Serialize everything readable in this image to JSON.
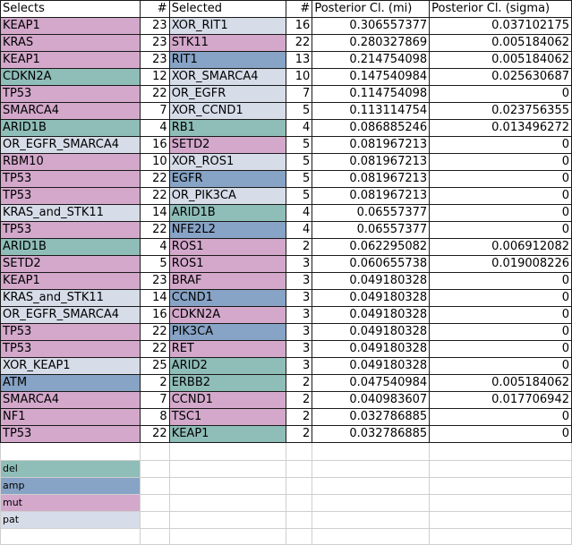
{
  "colors": {
    "del": "#8fbdb8",
    "amp": "#87a3c5",
    "mut": "#d3a8cb",
    "pat": "#d6dce8"
  },
  "headers": [
    "Selects",
    "#",
    "Selected",
    "#",
    "Posterior Cl. (mi)",
    "Posterior Cl. (sigma)"
  ],
  "rows": [
    {
      "selects": "KEAP1",
      "sel_type": "mut",
      "n1": "23",
      "selected": "XOR_RIT1",
      "sld_type": "pat",
      "n2": "16",
      "mi": "0.306557377",
      "sigma": "0.037102175"
    },
    {
      "selects": "KRAS",
      "sel_type": "mut",
      "n1": "23",
      "selected": "STK11",
      "sld_type": "mut",
      "n2": "22",
      "mi": "0.280327869",
      "sigma": "0.005184062"
    },
    {
      "selects": "KEAP1",
      "sel_type": "mut",
      "n1": "23",
      "selected": "RIT1",
      "sld_type": "amp",
      "n2": "13",
      "mi": "0.214754098",
      "sigma": "0.005184062"
    },
    {
      "selects": "CDKN2A",
      "sel_type": "del",
      "n1": "12",
      "selected": "XOR_SMARCA4",
      "sld_type": "pat",
      "n2": "10",
      "mi": "0.147540984",
      "sigma": "0.025630687"
    },
    {
      "selects": "TP53",
      "sel_type": "mut",
      "n1": "22",
      "selected": "OR_EGFR",
      "sld_type": "pat",
      "n2": "7",
      "mi": "0.114754098",
      "sigma": "0"
    },
    {
      "selects": "SMARCA4",
      "sel_type": "mut",
      "n1": "7",
      "selected": "XOR_CCND1",
      "sld_type": "pat",
      "n2": "5",
      "mi": "0.113114754",
      "sigma": "0.023756355"
    },
    {
      "selects": "ARID1B",
      "sel_type": "del",
      "n1": "4",
      "selected": "RB1",
      "sld_type": "del",
      "n2": "4",
      "mi": "0.086885246",
      "sigma": "0.013496272"
    },
    {
      "selects": "OR_EGFR_SMARCA4",
      "sel_type": "pat",
      "n1": "16",
      "selected": "SETD2",
      "sld_type": "mut",
      "n2": "5",
      "mi": "0.081967213",
      "sigma": "0"
    },
    {
      "selects": "RBM10",
      "sel_type": "mut",
      "n1": "10",
      "selected": "XOR_ROS1",
      "sld_type": "pat",
      "n2": "5",
      "mi": "0.081967213",
      "sigma": "0"
    },
    {
      "selects": "TP53",
      "sel_type": "mut",
      "n1": "22",
      "selected": "EGFR",
      "sld_type": "amp",
      "n2": "5",
      "mi": "0.081967213",
      "sigma": "0"
    },
    {
      "selects": "TP53",
      "sel_type": "mut",
      "n1": "22",
      "selected": "OR_PIK3CA",
      "sld_type": "pat",
      "n2": "5",
      "mi": "0.081967213",
      "sigma": "0"
    },
    {
      "selects": "KRAS_and_STK11",
      "sel_type": "pat",
      "n1": "14",
      "selected": "ARID1B",
      "sld_type": "del",
      "n2": "4",
      "mi": "0.06557377",
      "sigma": "0"
    },
    {
      "selects": "TP53",
      "sel_type": "mut",
      "n1": "22",
      "selected": "NFE2L2",
      "sld_type": "amp",
      "n2": "4",
      "mi": "0.06557377",
      "sigma": "0"
    },
    {
      "selects": "ARID1B",
      "sel_type": "del",
      "n1": "4",
      "selected": "ROS1",
      "sld_type": "mut",
      "n2": "2",
      "mi": "0.062295082",
      "sigma": "0.006912082"
    },
    {
      "selects": "SETD2",
      "sel_type": "mut",
      "n1": "5",
      "selected": "ROS1",
      "sld_type": "mut",
      "n2": "3",
      "mi": "0.060655738",
      "sigma": "0.019008226"
    },
    {
      "selects": "KEAP1",
      "sel_type": "mut",
      "n1": "23",
      "selected": "BRAF",
      "sld_type": "mut",
      "n2": "3",
      "mi": "0.049180328",
      "sigma": "0"
    },
    {
      "selects": "KRAS_and_STK11",
      "sel_type": "pat",
      "n1": "14",
      "selected": "CCND1",
      "sld_type": "amp",
      "n2": "3",
      "mi": "0.049180328",
      "sigma": "0"
    },
    {
      "selects": "OR_EGFR_SMARCA4",
      "sel_type": "pat",
      "n1": "16",
      "selected": "CDKN2A",
      "sld_type": "mut",
      "n2": "3",
      "mi": "0.049180328",
      "sigma": "0"
    },
    {
      "selects": "TP53",
      "sel_type": "mut",
      "n1": "22",
      "selected": "PIK3CA",
      "sld_type": "amp",
      "n2": "3",
      "mi": "0.049180328",
      "sigma": "0"
    },
    {
      "selects": "TP53",
      "sel_type": "mut",
      "n1": "22",
      "selected": "RET",
      "sld_type": "mut",
      "n2": "3",
      "mi": "0.049180328",
      "sigma": "0"
    },
    {
      "selects": "XOR_KEAP1",
      "sel_type": "pat",
      "n1": "25",
      "selected": "ARID2",
      "sld_type": "del",
      "n2": "3",
      "mi": "0.049180328",
      "sigma": "0"
    },
    {
      "selects": "ATM",
      "sel_type": "amp",
      "n1": "2",
      "selected": "ERBB2",
      "sld_type": "del",
      "n2": "2",
      "mi": "0.047540984",
      "sigma": "0.005184062"
    },
    {
      "selects": "SMARCA4",
      "sel_type": "mut",
      "n1": "7",
      "selected": "CCND1",
      "sld_type": "mut",
      "n2": "2",
      "mi": "0.040983607",
      "sigma": "0.017706942"
    },
    {
      "selects": "NF1",
      "sel_type": "mut",
      "n1": "8",
      "selected": "TSC1",
      "sld_type": "mut",
      "n2": "2",
      "mi": "0.032786885",
      "sigma": "0"
    },
    {
      "selects": "TP53",
      "sel_type": "mut",
      "n1": "22",
      "selected": "KEAP1",
      "sld_type": "del",
      "n2": "2",
      "mi": "0.032786885",
      "sigma": "0"
    }
  ],
  "legend": [
    {
      "label": "del",
      "type": "del"
    },
    {
      "label": "amp",
      "type": "amp"
    },
    {
      "label": "mut",
      "type": "mut"
    },
    {
      "label": "pat",
      "type": "pat"
    }
  ]
}
